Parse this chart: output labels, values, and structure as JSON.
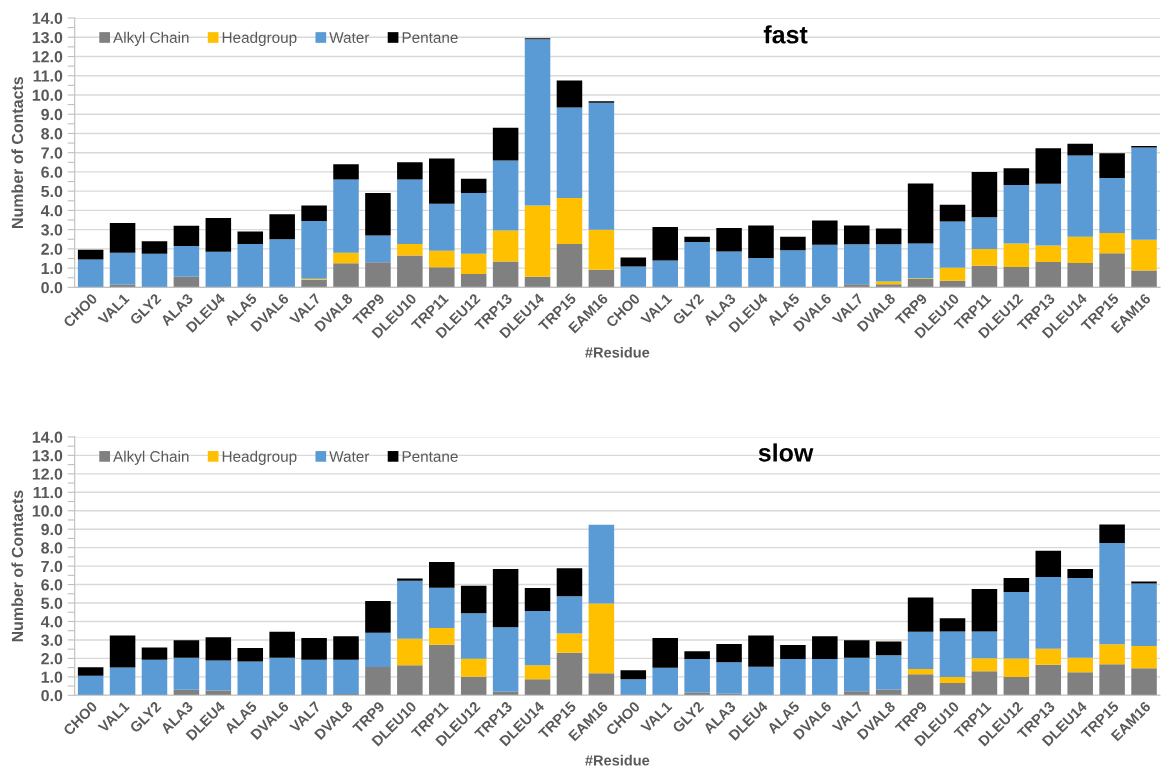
{
  "chart_data": [
    {
      "type": "bar",
      "title": "fast",
      "xlabel": "#Residue",
      "ylabel": "Number of Contacts",
      "stacked": true,
      "legend": "top left",
      "grid": "y",
      "categories": [
        "CHO0",
        "VAL1",
        "GLY2",
        "ALA3",
        "DLEU4",
        "ALA5",
        "DVAL6",
        "VAL7",
        "DVAL8",
        "TRP9",
        "DLEU10",
        "TRP11",
        "DLEU12",
        "TRP13",
        "DLEU14",
        "TRP15",
        "EAM16",
        "CHO0",
        "VAL1",
        "GLY2",
        "ALA3",
        "DLEU4",
        "ALA5",
        "DVAL6",
        "VAL7",
        "DVAL8",
        "TRP9",
        "DLEU10",
        "TRP11",
        "DLEU12",
        "TRP13",
        "DLEU14",
        "TRP15",
        "EAM16"
      ],
      "ylim": [
        0,
        14
      ],
      "yticks": [
        {
          "value": 0,
          "label": "0.0"
        },
        {
          "value": 0.5,
          "label": null
        },
        {
          "value": 1,
          "label": "1.0"
        },
        {
          "value": 1.5,
          "label": null
        },
        {
          "value": 2,
          "label": "2.0"
        },
        {
          "value": 2.5,
          "label": null
        },
        {
          "value": 3,
          "label": "3.0"
        },
        {
          "value": 3.5,
          "label": null
        },
        {
          "value": 4,
          "label": "4.0"
        },
        {
          "value": 4.5,
          "label": null
        },
        {
          "value": 5,
          "label": "5.0"
        },
        {
          "value": 5.5,
          "label": null
        },
        {
          "value": 6,
          "label": "6.0"
        },
        {
          "value": 6.5,
          "label": null
        },
        {
          "value": 7,
          "label": "7.0"
        },
        {
          "value": 7.5,
          "label": null
        },
        {
          "value": 8,
          "label": "8.0"
        },
        {
          "value": 8.5,
          "label": null
        },
        {
          "value": 9,
          "label": "9.0"
        },
        {
          "value": 9.5,
          "label": null
        },
        {
          "value": 10,
          "label": "10.0"
        },
        {
          "value": 10.5,
          "label": null
        },
        {
          "value": 11,
          "label": "11.0"
        },
        {
          "value": 11.5,
          "label": null
        },
        {
          "value": 12,
          "label": "12.0"
        },
        {
          "value": 12.5,
          "label": null
        },
        {
          "value": 13,
          "label": "13.0"
        },
        {
          "value": 13.5,
          "label": null
        },
        {
          "value": 14,
          "label": "14.0"
        }
      ],
      "series": [
        {
          "name": "Alkyl Chain",
          "color": "#808080",
          "values": [
            0,
            0.15,
            0,
            0.55,
            0,
            0,
            0,
            0.4,
            1.25,
            1.3,
            1.65,
            1.05,
            0.7,
            1.35,
            0.55,
            2.25,
            0.92,
            0,
            0,
            0,
            0,
            0,
            0,
            0,
            0.16,
            0.16,
            0.43,
            0.35,
            1.12,
            1.06,
            1.32,
            1.26,
            1.77,
            0.88
          ]
        },
        {
          "name": "Headgroup",
          "color": "#ffc000",
          "values": [
            0,
            0,
            0,
            0,
            0,
            0,
            0,
            0.05,
            0.55,
            0,
            0.6,
            0.85,
            1.05,
            1.6,
            3.7,
            2.4,
            2.07,
            0,
            0,
            0,
            0,
            0,
            0,
            0,
            0,
            0.15,
            0.04,
            0.67,
            0.88,
            1.22,
            0.86,
            1.37,
            1.06,
            1.6
          ]
        },
        {
          "name": "Water",
          "color": "#5b9bd5",
          "values": [
            1.45,
            1.65,
            1.75,
            1.6,
            1.85,
            2.25,
            2.5,
            3.0,
            3.8,
            1.4,
            3.35,
            2.45,
            3.15,
            3.65,
            8.65,
            4.7,
            6.6,
            1.08,
            1.39,
            2.36,
            1.87,
            1.53,
            1.93,
            2.22,
            2.08,
            1.93,
            1.81,
            2.4,
            1.65,
            3.04,
            3.2,
            4.23,
            2.85,
            4.79
          ]
        },
        {
          "name": "Pentane",
          "color": "#000000",
          "values": [
            0.5,
            1.55,
            0.65,
            1.05,
            1.75,
            0.65,
            1.3,
            0.8,
            0.8,
            2.2,
            0.9,
            2.35,
            0.75,
            1.7,
            0.05,
            1.4,
            0.08,
            0.47,
            1.75,
            0.27,
            1.21,
            1.69,
            0.7,
            1.26,
            0.98,
            0.82,
            3.12,
            0.88,
            2.34,
            0.87,
            1.85,
            0.61,
            1.29,
            0.08
          ]
        }
      ]
    },
    {
      "type": "bar",
      "title": "slow",
      "xlabel": "#Residue",
      "ylabel": "Number of Contacts",
      "stacked": true,
      "legend": "top left",
      "grid": "y",
      "categories": [
        "CHO0",
        "VAL1",
        "GLY2",
        "ALA3",
        "DLEU4",
        "ALA5",
        "DVAL6",
        "VAL7",
        "DVAL8",
        "TRP9",
        "DLEU10",
        "TRP11",
        "DLEU12",
        "TRP13",
        "DLEU14",
        "TRP15",
        "EAM16",
        "CHO0",
        "VAL1",
        "GLY2",
        "ALA3",
        "DLEU4",
        "ALA5",
        "DVAL6",
        "VAL7",
        "DVAL8",
        "TRP9",
        "DLEU10",
        "TRP11",
        "DLEU12",
        "TRP13",
        "DLEU14",
        "TRP15",
        "EAM16"
      ],
      "ylim": [
        0,
        14
      ],
      "yticks": [
        {
          "value": 0,
          "label": "0.0"
        },
        {
          "value": 0.5,
          "label": null
        },
        {
          "value": 1,
          "label": "1.0"
        },
        {
          "value": 1.5,
          "label": null
        },
        {
          "value": 2,
          "label": "2.0"
        },
        {
          "value": 2.5,
          "label": null
        },
        {
          "value": 3,
          "label": "3.0"
        },
        {
          "value": 3.5,
          "label": null
        },
        {
          "value": 4,
          "label": "4.0"
        },
        {
          "value": 4.5,
          "label": null
        },
        {
          "value": 5,
          "label": "5.0"
        },
        {
          "value": 5.5,
          "label": null
        },
        {
          "value": 6,
          "label": "6.0"
        },
        {
          "value": 6.5,
          "label": null
        },
        {
          "value": 7,
          "label": "7.0"
        },
        {
          "value": 7.5,
          "label": null
        },
        {
          "value": 8,
          "label": "8.0"
        },
        {
          "value": 8.5,
          "label": null
        },
        {
          "value": 9,
          "label": "9.0"
        },
        {
          "value": 9.5,
          "label": null
        },
        {
          "value": 10,
          "label": "10.0"
        },
        {
          "value": 10.5,
          "label": null
        },
        {
          "value": 11,
          "label": "11.0"
        },
        {
          "value": 11.5,
          "label": null
        },
        {
          "value": 12,
          "label": "12.0"
        },
        {
          "value": 12.5,
          "label": null
        },
        {
          "value": 13,
          "label": "13.0"
        },
        {
          "value": 13.5,
          "label": null
        },
        {
          "value": 14,
          "label": "14.0"
        }
      ],
      "series": [
        {
          "name": "Alkyl Chain",
          "color": "#808080",
          "values": [
            0,
            0,
            0,
            0.3,
            0.26,
            0,
            0,
            0,
            0.07,
            1.54,
            1.63,
            2.74,
            1.0,
            0.19,
            0.87,
            2.3,
            1.2,
            0,
            0,
            0.15,
            0.09,
            0,
            0,
            0,
            0.22,
            0.31,
            1.14,
            0.66,
            1.31,
            0.99,
            1.66,
            1.25,
            1.68,
            1.47
          ]
        },
        {
          "name": "Headgroup",
          "color": "#ffc000",
          "values": [
            0,
            0,
            0,
            0,
            0,
            0,
            0,
            0,
            0,
            0,
            1.43,
            0.91,
            0.98,
            0,
            0.76,
            1.05,
            3.77,
            0,
            0,
            0,
            0,
            0,
            0,
            0,
            0,
            0,
            0.28,
            0.33,
            0.7,
            1.0,
            0.86,
            0.79,
            1.08,
            1.2
          ]
        },
        {
          "name": "Water",
          "color": "#5b9bd5",
          "values": [
            1.06,
            1.5,
            1.93,
            1.74,
            1.63,
            1.83,
            2.04,
            1.93,
            1.86,
            1.85,
            3.14,
            2.18,
            2.46,
            3.5,
            2.94,
            2.02,
            4.27,
            0.87,
            1.49,
            1.82,
            1.7,
            1.55,
            1.97,
            1.97,
            1.81,
            1.86,
            2.02,
            2.47,
            1.45,
            3.61,
            3.89,
            4.31,
            5.49,
            3.39
          ]
        },
        {
          "name": "Pentane",
          "color": "#000000",
          "values": [
            0.46,
            1.74,
            0.66,
            0.94,
            1.26,
            0.73,
            1.4,
            1.18,
            1.27,
            1.72,
            0.13,
            1.39,
            1.5,
            3.16,
            1.24,
            1.52,
            0,
            0.49,
            1.62,
            0.42,
            0.99,
            1.69,
            0.76,
            1.23,
            0.95,
            0.74,
            1.86,
            0.72,
            2.3,
            0.75,
            1.42,
            0.5,
            1.01,
            0.11
          ]
        }
      ]
    }
  ]
}
